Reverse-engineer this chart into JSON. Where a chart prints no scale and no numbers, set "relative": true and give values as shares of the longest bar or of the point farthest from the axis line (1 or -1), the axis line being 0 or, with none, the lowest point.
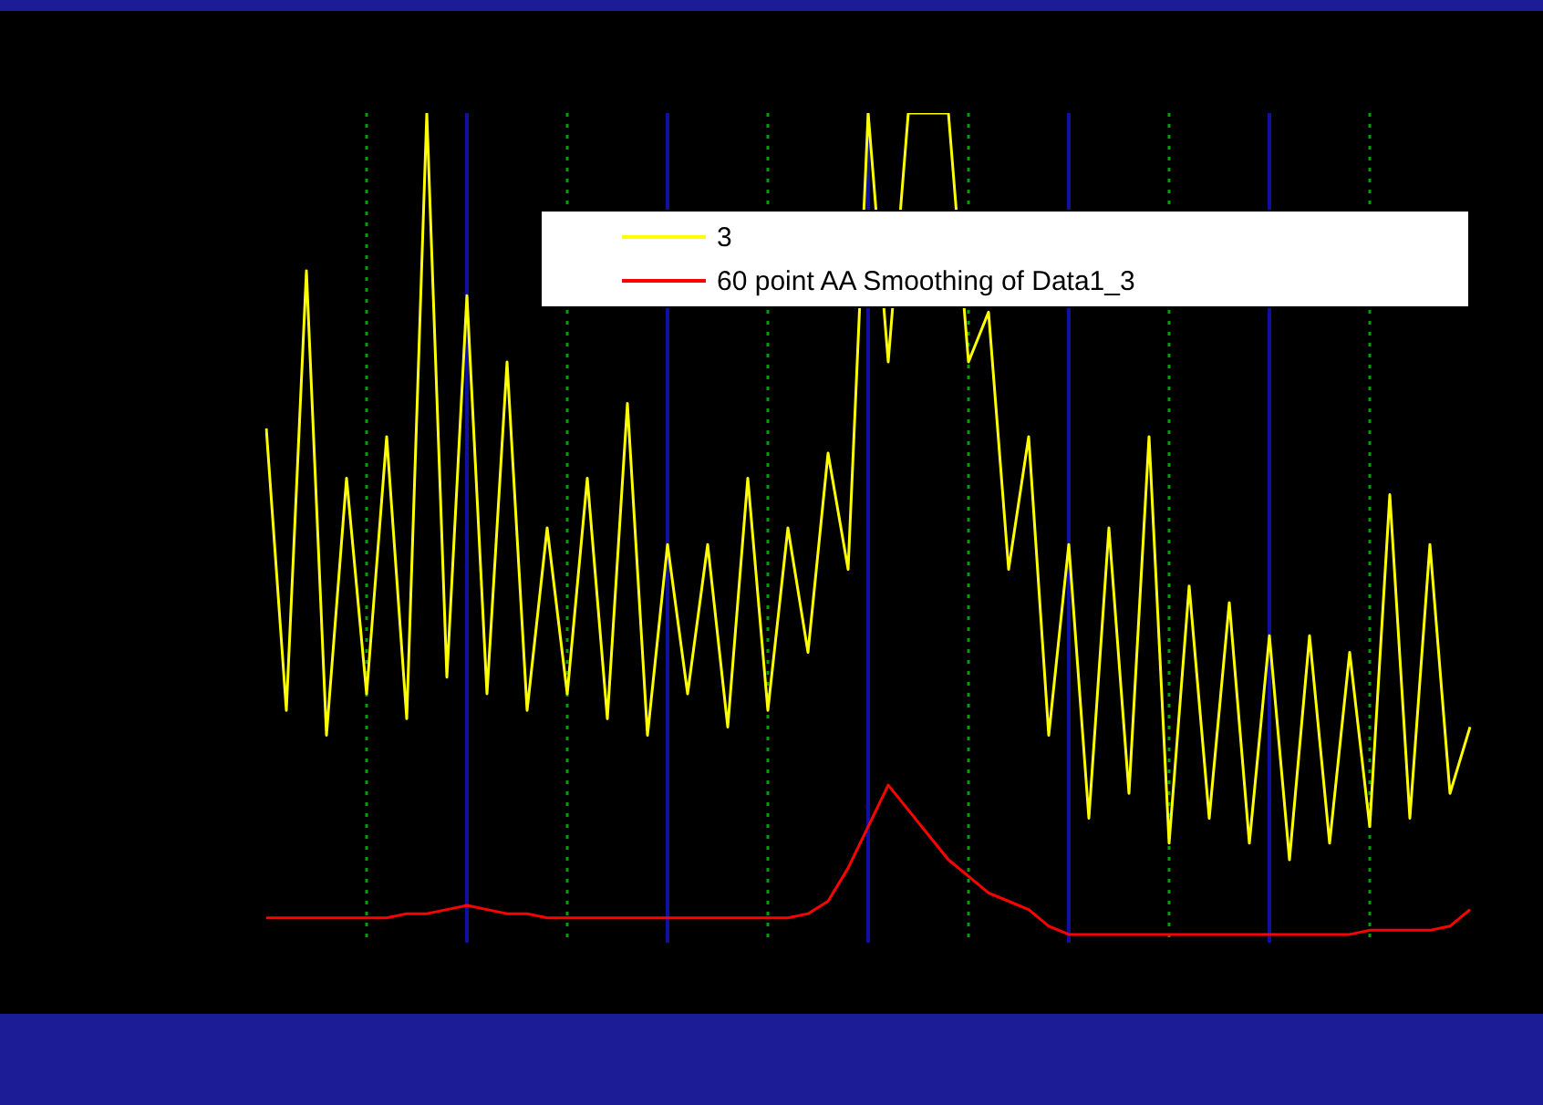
{
  "chart_data": {
    "type": "line",
    "relative": true,
    "tick_labels": false,
    "grid": "x",
    "legend": "top right",
    "categories": [
      null,
      null,
      null,
      null,
      null,
      null,
      null,
      null,
      null,
      null,
      null,
      null,
      null,
      null,
      null,
      null,
      null,
      null,
      null,
      null,
      null,
      null,
      null,
      null,
      null,
      null,
      null,
      null,
      null,
      null,
      null,
      null,
      null,
      null,
      null,
      null,
      null,
      null,
      null,
      null,
      null,
      null,
      null,
      null,
      null,
      null,
      null,
      null,
      null,
      null,
      null,
      null,
      null,
      null,
      null,
      null,
      null,
      null,
      null,
      null,
      null
    ],
    "series": [
      {
        "name": "3",
        "color": "#ffff00",
        "values": [
          0.62,
          0.28,
          0.81,
          0.25,
          0.56,
          0.3,
          0.61,
          0.27,
          1,
          0.32,
          0.78,
          0.3,
          0.7,
          0.28,
          0.5,
          0.3,
          0.56,
          0.27,
          0.65,
          0.25,
          0.48,
          0.3,
          0.48,
          0.26,
          0.56,
          0.28,
          0.5,
          0.35,
          0.59,
          0.45,
          1,
          0.7,
          1,
          null,
          1,
          0.7,
          0.76,
          0.45,
          0.61,
          0.25,
          0.48,
          0.15,
          0.5,
          0.18,
          0.61,
          0.12,
          0.43,
          0.15,
          0.41,
          0.12,
          0.37,
          0.1,
          0.37,
          0.12,
          0.35,
          0.14,
          0.54,
          0.15,
          0.48,
          0.18,
          0.26
        ]
      },
      {
        "name": "60 point AA Smoothing of Data1_3",
        "color": "#ff0000",
        "values": [
          0.03,
          0.03,
          0.03,
          0.03,
          0.03,
          0.03,
          0.03,
          0.035,
          0.035,
          0.04,
          0.045,
          0.04,
          0.035,
          0.035,
          0.03,
          0.03,
          0.03,
          0.03,
          0.03,
          0.03,
          0.03,
          0.03,
          0.03,
          0.03,
          0.03,
          0.03,
          0.03,
          0.035,
          0.05,
          0.09,
          0.14,
          0.19,
          0.16,
          0.13,
          0.1,
          0.08,
          0.06,
          0.05,
          0.04,
          0.02,
          0.01,
          0.01,
          0.01,
          0.01,
          0.01,
          0.01,
          0.01,
          0.01,
          0.01,
          0.01,
          0.01,
          0.01,
          0.01,
          0.01,
          0.01,
          0.015,
          0.015,
          0.015,
          0.015,
          0.02,
          0.04
        ]
      }
    ]
  }
}
